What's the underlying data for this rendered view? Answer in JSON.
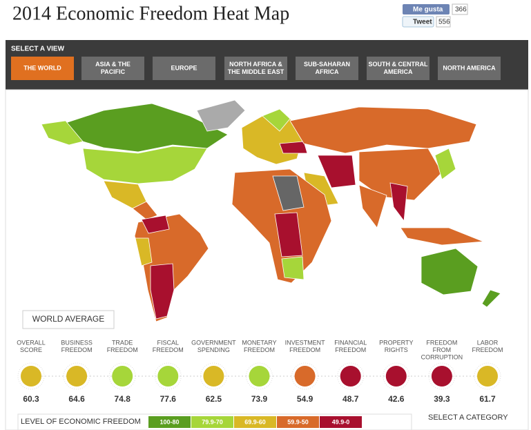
{
  "header": {
    "title": "2014 Economic Freedom Heat Map"
  },
  "social": {
    "like": {
      "label": "Me gusta",
      "count": 366
    },
    "tweet": {
      "label": "Tweet",
      "count": 556
    }
  },
  "nav": {
    "heading": "SELECT A VIEW",
    "tabs": [
      {
        "lines": [
          "THE WORLD"
        ],
        "active": true
      },
      {
        "lines": [
          "ASIA & THE",
          "PACIFIC"
        ],
        "active": false
      },
      {
        "lines": [
          "EUROPE"
        ],
        "active": false
      },
      {
        "lines": [
          "NORTH AFRICA &",
          "THE MIDDLE EAST"
        ],
        "active": false
      },
      {
        "lines": [
          "SUB-SAHARAN",
          "AFRICA"
        ],
        "active": false
      },
      {
        "lines": [
          "SOUTH & CENTRAL",
          "AMERICA"
        ],
        "active": false
      },
      {
        "lines": [
          "NORTH AMERICA"
        ],
        "active": false
      }
    ]
  },
  "world_average": {
    "heading": "WORLD AVERAGE"
  },
  "categories": [
    {
      "lines": [
        "OVERALL",
        "SCORE"
      ],
      "score": 60.3,
      "color": "#d9b826"
    },
    {
      "lines": [
        "BUSINESS",
        "FREEDOM"
      ],
      "score": 64.6,
      "color": "#d9b826"
    },
    {
      "lines": [
        "TRADE",
        "FREEDOM"
      ],
      "score": 74.8,
      "color": "#a6d63a"
    },
    {
      "lines": [
        "FISCAL",
        "FREEDOM"
      ],
      "score": 77.6,
      "color": "#a6d63a"
    },
    {
      "lines": [
        "GOVERNMENT",
        "SPENDING"
      ],
      "score": 62.5,
      "color": "#d9b826"
    },
    {
      "lines": [
        "MONETARY",
        "FREEDOM"
      ],
      "score": 73.9,
      "color": "#a6d63a"
    },
    {
      "lines": [
        "INVESTMENT",
        "FREEDOM"
      ],
      "score": 54.9,
      "color": "#d86a2a"
    },
    {
      "lines": [
        "FINANCIAL",
        "FREEDOM"
      ],
      "score": 48.7,
      "color": "#a8102e"
    },
    {
      "lines": [
        "PROPERTY",
        "RIGHTS"
      ],
      "score": 42.6,
      "color": "#a8102e"
    },
    {
      "lines": [
        "FREEDOM",
        "FROM",
        "CORRUPTION"
      ],
      "score": 39.3,
      "color": "#a8102e"
    },
    {
      "lines": [
        "LABOR",
        "FREEDOM"
      ],
      "score": 61.7,
      "color": "#d9b826"
    }
  ],
  "legend": {
    "heading": "LEVEL OF ECONOMIC FREEDOM",
    "levels": [
      {
        "label": "100-80",
        "color": "#5a9e20"
      },
      {
        "label": "79.9-70",
        "color": "#a6d63a"
      },
      {
        "label": "69.9-60",
        "color": "#d9b826"
      },
      {
        "label": "59.9-50",
        "color": "#d86a2a"
      },
      {
        "label": "49.9-0",
        "color": "#a8102e"
      }
    ]
  },
  "select_category": "SELECT A CATEGORY"
}
